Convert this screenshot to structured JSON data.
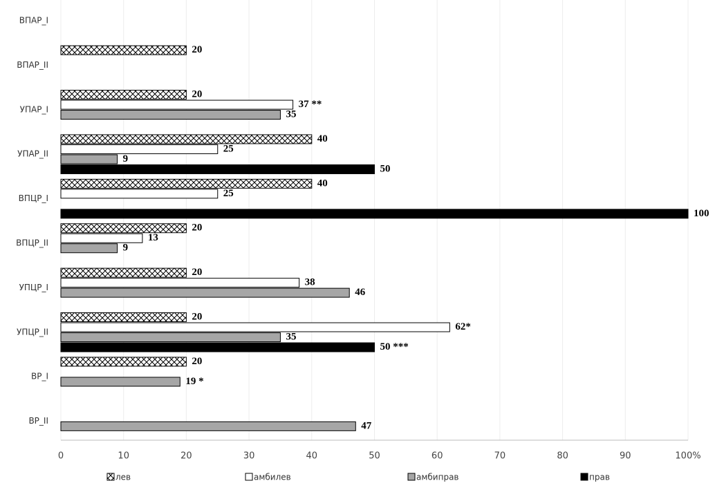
{
  "chart_data": {
    "type": "hbar",
    "categories": [
      "ВПАР_I",
      "ВПАР_II",
      "УПАР_I",
      "УПАР_II",
      "ВПЦР_I",
      "ВПЦР_II",
      "УПЦР_I",
      "УПЦР_II",
      "ВР_I",
      "ВР_II"
    ],
    "series": [
      {
        "name": "лев",
        "color": "#ffffff",
        "hatch": true,
        "values": [
          null,
          20,
          20,
          40,
          40,
          20,
          20,
          20,
          20,
          null
        ]
      },
      {
        "name": "амбилев",
        "color": "#ffffff",
        "values": [
          null,
          null,
          37,
          25,
          25,
          13,
          38,
          62,
          null,
          null
        ],
        "value_labels": [
          null,
          null,
          "37 **",
          "25",
          "25",
          "13",
          "38",
          "62*",
          null,
          null
        ]
      },
      {
        "name": "амбиправ",
        "color": "#a6a6a6",
        "values": [
          null,
          null,
          35,
          9,
          null,
          9,
          46,
          35,
          19,
          47
        ],
        "value_labels": [
          null,
          null,
          "35",
          "9",
          null,
          "9",
          "46",
          "35",
          "19 *",
          "47"
        ]
      },
      {
        "name": "прав",
        "color": "#000000",
        "values": [
          null,
          null,
          null,
          50,
          100,
          null,
          null,
          50,
          null,
          null
        ],
        "value_labels": [
          null,
          null,
          null,
          "50",
          "100",
          null,
          null,
          "50 ***",
          null,
          null
        ]
      }
    ],
    "xlim": [
      0,
      100
    ],
    "xticks": [
      0,
      10,
      20,
      30,
      40,
      50,
      60,
      70,
      80,
      90,
      {
        "value": 100,
        "label": "100%"
      }
    ],
    "grid": true,
    "legend": "bottom"
  }
}
